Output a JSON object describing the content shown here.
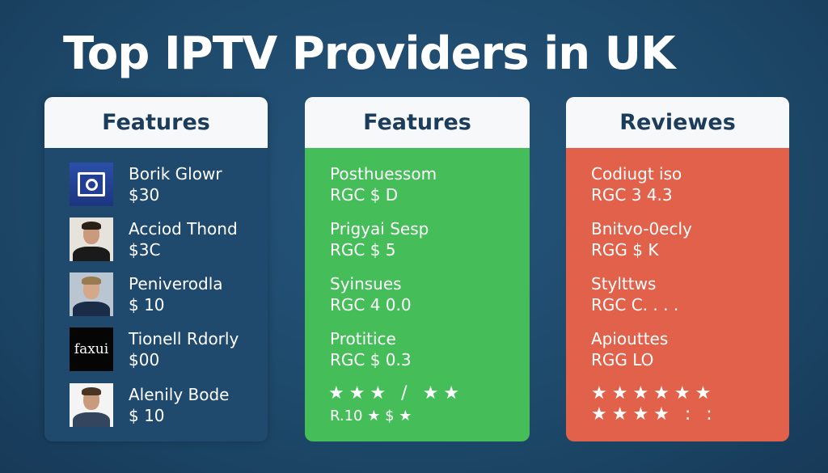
{
  "title": "Top IPTV Providers in UK",
  "columns": [
    {
      "header": "Features",
      "items": [
        {
          "name": "Borik Glowr",
          "price": "$30",
          "thumb": "camera-logo"
        },
        {
          "name": "Acciod Thond",
          "price": "$3C",
          "thumb": "person-photo"
        },
        {
          "name": "Peniverodla",
          "price": "$ 10",
          "thumb": "person-photo"
        },
        {
          "name": "Tionell Rdorly",
          "price": "$00",
          "thumb": "faxui-logo",
          "logo_text": "faxui"
        },
        {
          "name": "Alenily Bode",
          "price": "$ 10",
          "thumb": "person-photo"
        }
      ]
    },
    {
      "header": "Features",
      "color": "#45be5a",
      "items": [
        {
          "name": "Posthuessom",
          "value": "RGC $ D"
        },
        {
          "name": "Prigyai Sesp",
          "value": "RGC $ 5"
        },
        {
          "name": "Syinsues",
          "value": "RGC 4 0.0"
        },
        {
          "name": "Protitice",
          "value": "RGC $ 0.3"
        }
      ],
      "stars": "★★★ / ★★",
      "footer": "R.10 ★ $ ★"
    },
    {
      "header": "Reviewes",
      "color": "#e2614a",
      "items": [
        {
          "name": "Codiugt iso",
          "value": "RGC 3 4.3"
        },
        {
          "name": "Bnitvo-0ecly",
          "value": "RGG $ K"
        },
        {
          "name": "Stylttws",
          "value": "RGC C. . . ."
        },
        {
          "name": "Apiouttes",
          "value": "RGG LO"
        }
      ],
      "stars": "★★★★★★",
      "stars2": "★★★★ : :"
    }
  ]
}
